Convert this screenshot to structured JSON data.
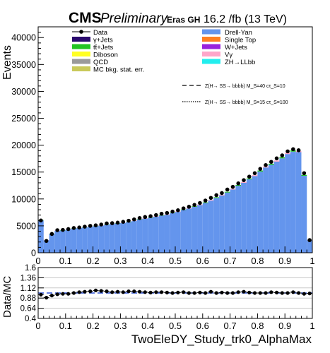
{
  "header": {
    "cms": "CMS",
    "preliminary": "Preliminary",
    "eras": "Eras GH",
    "lumi": "16.2 /fb (13 TeV)"
  },
  "chart_data": [
    {
      "type": "bar",
      "panel": "main",
      "ylabel": "Events",
      "xlim": [
        0,
        1
      ],
      "ylim": [
        0,
        42000
      ],
      "yticks": [
        0,
        5000,
        10000,
        15000,
        20000,
        25000,
        30000,
        35000,
        40000
      ],
      "ytick_labels": [
        "0",
        "5000",
        "10000",
        "15000",
        "20000",
        "25000",
        "30000",
        "35000",
        "40000"
      ],
      "bin_edges": [
        0.0,
        0.02,
        0.04,
        0.06,
        0.08,
        0.1,
        0.12,
        0.14,
        0.16,
        0.18,
        0.2,
        0.22,
        0.24,
        0.26,
        0.28,
        0.3,
        0.32,
        0.34,
        0.36,
        0.38,
        0.4,
        0.42,
        0.44,
        0.46,
        0.48,
        0.5,
        0.52,
        0.54,
        0.56,
        0.58,
        0.6,
        0.62,
        0.64,
        0.66,
        0.68,
        0.7,
        0.72,
        0.74,
        0.76,
        0.78,
        0.8,
        0.82,
        0.84,
        0.86,
        0.88,
        0.9,
        0.92,
        0.94,
        0.96,
        0.98,
        1.0
      ],
      "series": [
        {
          "name": "Drell-Yan",
          "color": "#6495ed",
          "values": [
            6000,
            2300,
            3500,
            4100,
            4150,
            4350,
            4500,
            4600,
            4700,
            4850,
            4950,
            5050,
            5200,
            5350,
            5450,
            5550,
            5700,
            5900,
            6200,
            6350,
            6500,
            6700,
            6900,
            7050,
            7350,
            7600,
            7950,
            8200,
            8550,
            8850,
            9250,
            9700,
            10200,
            10650,
            11200,
            11750,
            12450,
            13000,
            13650,
            14250,
            15100,
            15850,
            16350,
            16950,
            17550,
            18350,
            18800,
            18700,
            14300,
            2300
          ]
        }
      ],
      "data": {
        "name": "Data",
        "values": [
          6000,
          2200,
          3500,
          4200,
          4250,
          4400,
          4600,
          4700,
          4850,
          5000,
          5100,
          5250,
          5450,
          5500,
          5600,
          5750,
          5950,
          6200,
          6450,
          6650,
          6800,
          7000,
          7250,
          7400,
          7650,
          7900,
          8250,
          8550,
          8900,
          9250,
          9700,
          10200,
          10700,
          11100,
          11750,
          12250,
          12900,
          13500,
          14150,
          14800,
          15600,
          16300,
          16900,
          17550,
          18100,
          18850,
          19250,
          19050,
          14800,
          2350
        ]
      },
      "legend_left": [
        "Data",
        "γ+Jets",
        "tt̄+Jets",
        "Diboson",
        "QCD",
        "MC bkg. stat. err."
      ],
      "legend_right": [
        "Drell-Yan",
        "Single Top",
        "W+Jets",
        "Vγ",
        "ZH→LLbb"
      ],
      "legend_colors": {
        "γ+Jets": "#2a0a6e",
        "tt̄+Jets": "#22c422",
        "Diboson": "#ffff22",
        "QCD": "#9a9a9a",
        "MC bkg. stat. err.": "#c9c95a",
        "Drell-Yan": "#6495ed",
        "Single Top": "#ff7f22",
        "W+Jets": "#9922dd",
        "Vγ": "#ffa6c9",
        "ZH→LLbb": "#22eeee"
      },
      "signal_legend": [
        {
          "name": "Z(H→ SS→ bbbb) M_S=40 cτ_S=10",
          "style": "dashed"
        },
        {
          "name": "Z(H→ SS→ bbbb) M_S=15 cτ_S=100",
          "style": "dotted"
        }
      ]
    },
    {
      "type": "scatter",
      "panel": "ratio",
      "ylabel": "Data/MC",
      "xlabel": "TwoEleDY_Study_trk0_AlphaMax",
      "xlim": [
        0,
        1
      ],
      "ylim": [
        0.4,
        1.6
      ],
      "yticks": [
        0.4,
        0.64,
        0.88,
        1.12,
        1.36,
        1.6
      ],
      "ytick_labels": [
        "0.4",
        "0.64",
        "0.88",
        "1.12",
        "1.36",
        "1.6"
      ],
      "xticks": [
        0,
        0.1,
        0.2,
        0.3,
        0.4,
        0.5,
        0.6,
        0.7,
        0.8,
        0.9,
        1
      ],
      "xtick_labels": [
        "0",
        "0.1",
        "0.2",
        "0.3",
        "0.4",
        "0.5",
        "0.6",
        "0.7",
        "0.8",
        "0.9",
        "1"
      ],
      "ratio": [
        0.96,
        0.89,
        0.94,
        0.97,
        0.98,
        0.98,
        1.0,
        1.02,
        1.03,
        1.04,
        1.06,
        1.05,
        1.04,
        1.02,
        1.03,
        1.02,
        1.04,
        1.04,
        1.03,
        1.02,
        1.01,
        1.02,
        1.02,
        1.01,
        1.0,
        1.01,
        1.02,
        1.0,
        1.0,
        1.01,
        1.0,
        1.03,
        1.0,
        1.01,
        1.0,
        1.0,
        1.02,
        1.03,
        1.01,
        1.0,
        1.0,
        1.0,
        1.02,
        1.01,
        1.0,
        1.0,
        1.02,
        1.0,
        0.98,
        0.99
      ],
      "reference_line": 1.0
    }
  ]
}
